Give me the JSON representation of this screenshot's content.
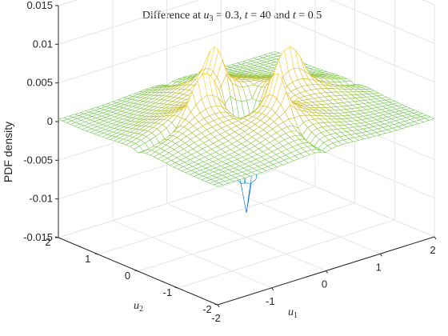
{
  "chart_data": {
    "type": "surface",
    "plot_style": "3d-mesh",
    "title_parts": {
      "lead": "Difference at ",
      "u3_sym": "u",
      "u3_sub": "3",
      "u3_val": " = 0.3, ",
      "t_sym1": "t",
      "t_val1": " = 40 and ",
      "t_sym2": "t",
      "t_val2": " = 0.5"
    },
    "zlabel": "PDF density",
    "xlabel": {
      "sym": "u",
      "sub": "1"
    },
    "ylabel": {
      "sym": "u",
      "sub": "2"
    },
    "x_ticks": [
      "-2",
      "-1",
      "0",
      "1",
      "2"
    ],
    "y_ticks": [
      "-2",
      "-1",
      "0",
      "1",
      "2"
    ],
    "z_ticks": [
      "-0.015",
      "-0.01",
      "-0.005",
      "0",
      "0.005",
      "0.01",
      "0.015"
    ],
    "xlim": [
      -2,
      2
    ],
    "ylim": [
      -2,
      2
    ],
    "zlim": [
      -0.015,
      0.015
    ],
    "grid": true,
    "colormap": "parula",
    "mesh_grid": 41,
    "features": [
      {
        "kind": "ridge",
        "along": "u2",
        "center_u1": 0,
        "peak": 0.0085,
        "decay": 0.7
      },
      {
        "kind": "ridge",
        "along": "u1",
        "center_u2": 0,
        "peak": 0.0085,
        "decay": 0.7
      },
      {
        "kind": "trough",
        "center": [
          0,
          0
        ],
        "min": -0.0125
      }
    ],
    "edge_values": {
      "near_axes": 0.0005,
      "outer": 0.0
    }
  }
}
